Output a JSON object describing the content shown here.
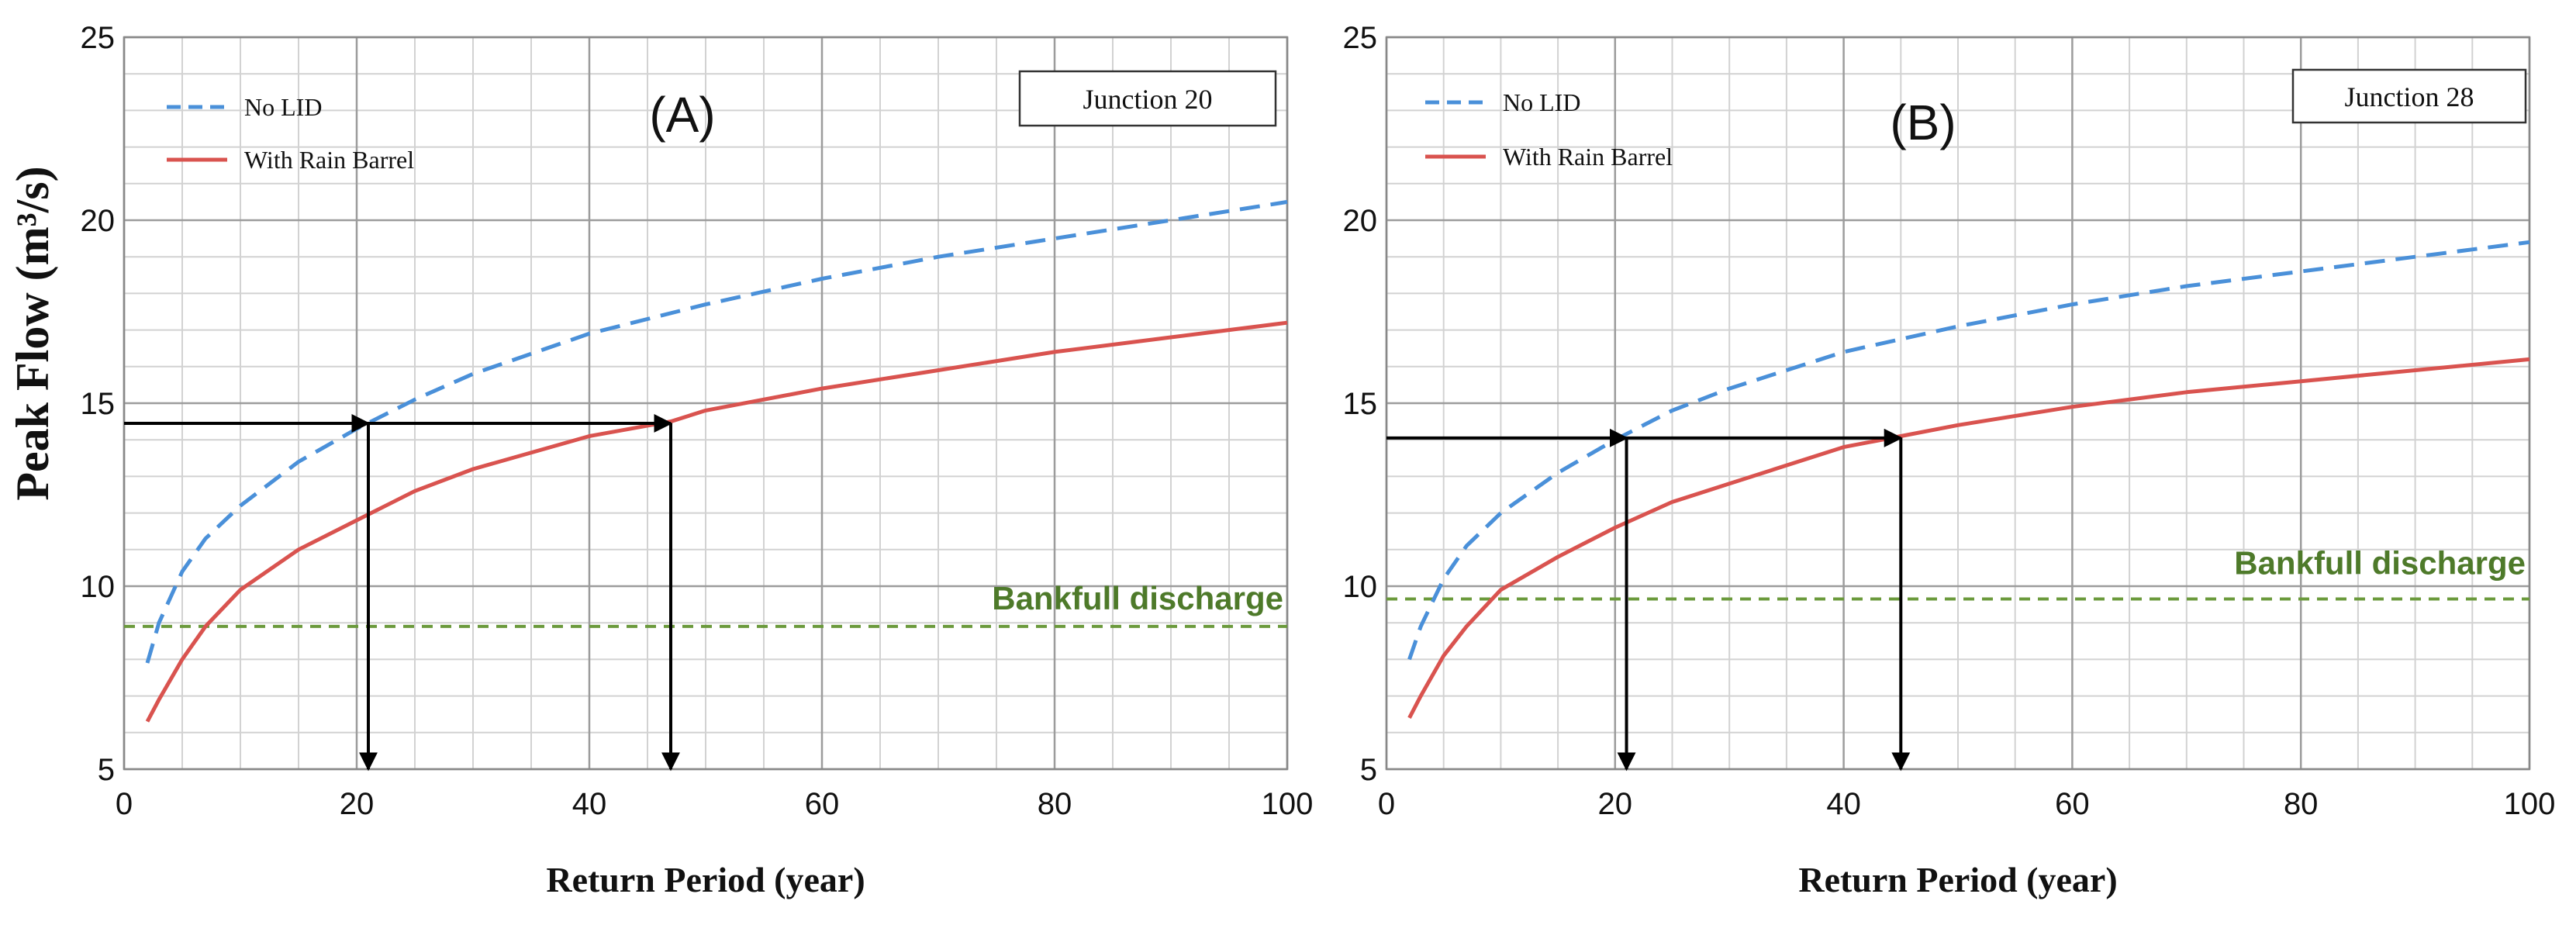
{
  "y_axis_title": "Peak Flow (m³/s)",
  "chart_data": [
    {
      "type": "line",
      "panel_label": "(A)",
      "junction": "Junction 20",
      "xlabel": "Return Period (year)",
      "xlim": [
        0,
        100
      ],
      "ylim": [
        5,
        25
      ],
      "x_ticks": [
        0,
        20,
        40,
        60,
        80,
        100
      ],
      "y_ticks": [
        5,
        10,
        15,
        20,
        25
      ],
      "grid": true,
      "legend": "top-left",
      "series": [
        {
          "name": "No LID",
          "style": "dashed",
          "color": "#4a90d9",
          "x": [
            2,
            3,
            5,
            7,
            10,
            15,
            20,
            25,
            30,
            40,
            50,
            60,
            70,
            80,
            90,
            100
          ],
          "values": [
            7.9,
            9.0,
            10.4,
            11.3,
            12.2,
            13.4,
            14.3,
            15.1,
            15.8,
            16.9,
            17.7,
            18.4,
            19.0,
            19.5,
            20.0,
            20.5
          ]
        },
        {
          "name": "With Rain Barrel",
          "style": "solid",
          "color": "#d9534f",
          "x": [
            2,
            3,
            5,
            7,
            10,
            15,
            20,
            25,
            30,
            40,
            47,
            50,
            60,
            70,
            80,
            90,
            100
          ],
          "values": [
            6.3,
            6.9,
            8.0,
            8.9,
            9.9,
            11.0,
            11.8,
            12.6,
            13.2,
            14.1,
            14.5,
            14.8,
            15.4,
            15.9,
            16.4,
            16.8,
            17.2
          ]
        }
      ],
      "reference_line": {
        "label": "Bankfull discharge",
        "value": 8.9,
        "color": "#6b9a3c"
      },
      "annotation_arrows": [
        {
          "from": [
            0,
            14.45
          ],
          "to": [
            21,
            14.45
          ]
        },
        {
          "from": [
            21,
            14.45
          ],
          "to": [
            47,
            14.45
          ]
        },
        {
          "from": [
            21,
            14.45
          ],
          "to": [
            21,
            5
          ]
        },
        {
          "from": [
            47,
            14.45
          ],
          "to": [
            47,
            5
          ]
        }
      ]
    },
    {
      "type": "line",
      "panel_label": "(B)",
      "junction": "Junction 28",
      "xlabel": "Return Period (year)",
      "xlim": [
        0,
        100
      ],
      "ylim": [
        5,
        25
      ],
      "x_ticks": [
        0,
        20,
        40,
        60,
        80,
        100
      ],
      "y_ticks": [
        5,
        10,
        15,
        20,
        25
      ],
      "grid": true,
      "legend": "top-left",
      "series": [
        {
          "name": "No LID",
          "style": "dashed",
          "color": "#4a90d9",
          "x": [
            2,
            3,
            5,
            7,
            10,
            15,
            20,
            25,
            30,
            40,
            50,
            60,
            70,
            80,
            90,
            100
          ],
          "values": [
            8.0,
            8.9,
            10.2,
            11.1,
            12.0,
            13.1,
            14.0,
            14.8,
            15.4,
            16.4,
            17.1,
            17.7,
            18.2,
            18.6,
            19.0,
            19.4
          ]
        },
        {
          "name": "With Rain Barrel",
          "style": "solid",
          "color": "#d9534f",
          "x": [
            2,
            3,
            5,
            7,
            10,
            15,
            20,
            25,
            30,
            40,
            45,
            50,
            60,
            70,
            80,
            90,
            100
          ],
          "values": [
            6.4,
            7.0,
            8.1,
            8.9,
            9.9,
            10.8,
            11.6,
            12.3,
            12.8,
            13.8,
            14.1,
            14.4,
            14.9,
            15.3,
            15.6,
            15.9,
            16.2
          ]
        }
      ],
      "reference_line": {
        "label": "Bankfull discharge",
        "value": 9.65,
        "color": "#6b9a3c"
      },
      "annotation_arrows": [
        {
          "from": [
            0,
            14.05
          ],
          "to": [
            21,
            14.05
          ]
        },
        {
          "from": [
            21,
            14.05
          ],
          "to": [
            45,
            14.05
          ]
        },
        {
          "from": [
            21,
            14.05
          ],
          "to": [
            21,
            5
          ]
        },
        {
          "from": [
            45,
            14.05
          ],
          "to": [
            45,
            5
          ]
        }
      ]
    }
  ]
}
